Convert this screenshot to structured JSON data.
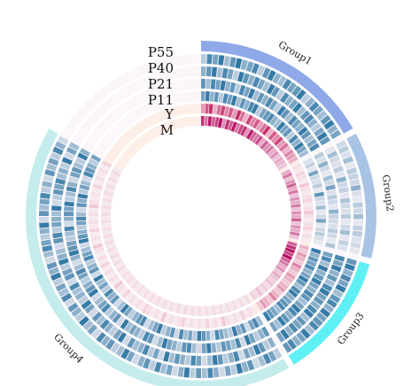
{
  "chart_data": {
    "type": "heatmap",
    "layout": "circular",
    "title": "",
    "tracks": [
      "P55",
      "P40",
      "P21",
      "P11",
      "Y",
      "M"
    ],
    "groups": [
      {
        "name": "Group1",
        "color": "#8fa8e8",
        "start_deg": 0,
        "end_deg": 60,
        "segments": 28
      },
      {
        "name": "Group2",
        "color": "#a9c3e6",
        "start_deg": 62,
        "end_deg": 104,
        "segments": 20
      },
      {
        "name": "Group3",
        "color": "#5ff0f6",
        "start_deg": 106,
        "end_deg": 148,
        "segments": 20
      },
      {
        "name": "Group4",
        "color": "#c4ecec",
        "start_deg": 150,
        "end_deg": 300,
        "segments": 70
      }
    ],
    "track_colors": {
      "P55": "#1f6d9e",
      "P40": "#1f6d9e",
      "P21": "#1f6d9e",
      "P11": "#1f6d9e",
      "Y": "#c2185b",
      "M": "#b0005a"
    },
    "value_scale": [
      0,
      1
    ],
    "values": {
      "Group1": {
        "P55": [
          0.3,
          0.8,
          0.6,
          0.9,
          0.4,
          0.7,
          0.95,
          0.5,
          0.6,
          0.8,
          0.3,
          0.7,
          0.9,
          0.5,
          0.4,
          0.8,
          0.6,
          0.7,
          0.9,
          0.3,
          0.5,
          0.8,
          0.6,
          0.4,
          0.7,
          0.9,
          0.5,
          0.6
        ],
        "P40": [
          0.5,
          0.7,
          0.9,
          0.4,
          0.8,
          0.6,
          0.3,
          0.9,
          0.7,
          0.5,
          0.8,
          0.6,
          0.4,
          0.9,
          0.7,
          0.3,
          0.8,
          0.5,
          0.6,
          0.9,
          0.4,
          0.7,
          0.8,
          0.5,
          0.3,
          0.6,
          0.9,
          0.7
        ],
        "P21": [
          0.7,
          0.4,
          0.8,
          0.6,
          0.9,
          0.5,
          0.7,
          0.3,
          0.8,
          0.6,
          0.9,
          0.4,
          0.7,
          0.5,
          0.8,
          0.6,
          0.3,
          0.9,
          0.7,
          0.4,
          0.8,
          0.6,
          0.5,
          0.9,
          0.7,
          0.4,
          0.6,
          0.8
        ],
        "P11": [
          0.6,
          0.9,
          0.5,
          0.7,
          0.3,
          0.8,
          0.6,
          0.9,
          0.4,
          0.7,
          0.5,
          0.8,
          0.9,
          0.3,
          0.6,
          0.7,
          0.8,
          0.5,
          0.4,
          0.9,
          0.6,
          0.7,
          0.3,
          0.8,
          0.5,
          0.9,
          0.6,
          0.4
        ],
        "Y": [
          0.4,
          0.7,
          0.9,
          0.3,
          0.6,
          0.8,
          0.5,
          0.7,
          0.4,
          0.9,
          0.6,
          0.3,
          0.8,
          0.5,
          0.7,
          0.4,
          0.6,
          0.9,
          0.3,
          0.7,
          0.5,
          0.8,
          0.4,
          0.6,
          0.3,
          0.5,
          0.4,
          0.3
        ],
        "M": [
          0.8,
          0.5,
          0.9,
          0.6,
          0.7,
          0.95,
          0.4,
          0.8,
          0.6,
          0.9,
          0.5,
          0.7,
          0.8,
          0.4,
          0.9,
          0.6,
          0.5,
          0.7,
          0.3,
          0.6,
          0.4,
          0.5,
          0.3,
          0.4,
          0.2,
          0.3,
          0.25,
          0.2
        ]
      },
      "Group2": {
        "P55": [
          0.2,
          0.3,
          0.15,
          0.4,
          0.1,
          0.3,
          0.25,
          0.2,
          0.5,
          0.15,
          0.1,
          0.3,
          0.2,
          0.4,
          0.1,
          0.25,
          0.3,
          0.15,
          0.2,
          0.1
        ],
        "P40": [
          0.1,
          0.4,
          0.2,
          0.15,
          0.3,
          0.1,
          0.5,
          0.2,
          0.25,
          0.1,
          0.35,
          0.2,
          0.15,
          0.3,
          0.1,
          0.2,
          0.4,
          0.1,
          0.25,
          0.15
        ],
        "P21": [
          0.3,
          0.15,
          0.5,
          0.2,
          0.1,
          0.4,
          0.2,
          0.6,
          0.15,
          0.3,
          0.2,
          0.1,
          0.5,
          0.25,
          0.2,
          0.15,
          0.3,
          0.2,
          0.1,
          0.35
        ],
        "P11": [
          0.15,
          0.25,
          0.1,
          0.6,
          0.2,
          0.15,
          0.3,
          0.1,
          0.7,
          0.2,
          0.15,
          0.4,
          0.1,
          0.2,
          0.6,
          0.1,
          0.2,
          0.3,
          0.15,
          0.1
        ],
        "Y": [
          0.1,
          0.05,
          0.15,
          0.1,
          0.05,
          0.2,
          0.1,
          0.05,
          0.1,
          0.15,
          0.05,
          0.1,
          0.2,
          0.1,
          0.05,
          0.1,
          0.15,
          0.05,
          0.1,
          0.05
        ],
        "M": [
          0.3,
          0.5,
          0.2,
          0.4,
          0.6,
          0.3,
          0.5,
          0.2,
          0.4,
          0.3,
          0.5,
          0.2,
          0.4,
          0.3,
          0.6,
          0.2,
          0.4,
          0.3,
          0.5,
          0.2
        ]
      },
      "Group3": {
        "P55": [
          0.7,
          0.9,
          0.5,
          0.8,
          0.6,
          0.9,
          0.4,
          0.7,
          0.8,
          0.5,
          0.9,
          0.6,
          0.7,
          0.8,
          0.4,
          0.9,
          0.6,
          0.5,
          0.8,
          0.7
        ],
        "P40": [
          0.8,
          0.6,
          0.9,
          0.5,
          0.7,
          0.4,
          0.8,
          0.9,
          0.6,
          0.7,
          0.5,
          0.8,
          0.9,
          0.4,
          0.7,
          0.6,
          0.8,
          0.5,
          0.9,
          0.6
        ],
        "P21": [
          0.6,
          0.8,
          0.4,
          0.9,
          0.5,
          0.7,
          0.9,
          0.6,
          0.5,
          0.8,
          0.7,
          0.4,
          0.6,
          0.9,
          0.8,
          0.5,
          0.7,
          0.9,
          0.4,
          0.6
        ],
        "P11": [
          0.9,
          0.5,
          0.7,
          0.6,
          0.8,
          0.5,
          0.6,
          0.9,
          0.7,
          0.4,
          0.8,
          0.9,
          0.5,
          0.6,
          0.7,
          0.8,
          0.4,
          0.6,
          0.7,
          0.9
        ],
        "Y": [
          0.3,
          0.2,
          0.4,
          0.3,
          0.2,
          0.5,
          0.3,
          0.2,
          0.4,
          0.3,
          0.2,
          0.3,
          0.4,
          0.2,
          0.3,
          0.5,
          0.2,
          0.3,
          0.4,
          0.2
        ],
        "M": [
          0.6,
          0.8,
          0.9,
          0.7,
          0.95,
          0.6,
          0.5,
          0.3,
          0.4,
          0.2,
          0.3,
          0.2,
          0.15,
          0.2,
          0.1,
          0.15,
          0.1,
          0.2,
          0.1,
          0.15
        ]
      },
      "Group4": {
        "P55": [
          0.3,
          0.6,
          0.8,
          0.4,
          0.2,
          0.7,
          0.5,
          0.9,
          0.3,
          0.6,
          0.2,
          0.5,
          0.8,
          0.4,
          0.7,
          0.3,
          0.9,
          0.5,
          0.2,
          0.6,
          0.4,
          0.8,
          0.3,
          0.7,
          0.5,
          0.2,
          0.6,
          0.9,
          0.4,
          0.3,
          0.7,
          0.5,
          0.8,
          0.2,
          0.6,
          0.4,
          0.9,
          0.3,
          0.5,
          0.7,
          0.2,
          0.8,
          0.4,
          0.6,
          0.3,
          0.9,
          0.5,
          0.7,
          0.2,
          0.4,
          0.8,
          0.6,
          0.3,
          0.5,
          0.9,
          0.2,
          0.7,
          0.4,
          0.6,
          0.8,
          0.3,
          0.5,
          0.2,
          0.7,
          0.4,
          0.6,
          0.3,
          0.8,
          0.5,
          0.2
        ],
        "P40": [
          0.5,
          0.3,
          0.7,
          0.9,
          0.4,
          0.6,
          0.2,
          0.8,
          0.5,
          0.3,
          0.7,
          0.9,
          0.4,
          0.2,
          0.6,
          0.8,
          0.3,
          0.5,
          0.7,
          0.4,
          0.9,
          0.2,
          0.6,
          0.3,
          0.8,
          0.5,
          0.4,
          0.7,
          0.2,
          0.9,
          0.6,
          0.3,
          0.5,
          0.8,
          0.4,
          0.7,
          0.2,
          0.6,
          0.9,
          0.3,
          0.5,
          0.4,
          0.8,
          0.2,
          0.7,
          0.6,
          0.3,
          0.9,
          0.5,
          0.4,
          0.2,
          0.7,
          0.8,
          0.3,
          0.6,
          0.5,
          0.4,
          0.9,
          0.2,
          0.3,
          0.7,
          0.6,
          0.8,
          0.4,
          0.5,
          0.3,
          0.9,
          0.2,
          0.6,
          0.4
        ],
        "P21": [
          0.7,
          0.5,
          0.3,
          0.6,
          0.9,
          0.2,
          0.8,
          0.4,
          0.6,
          0.7,
          0.3,
          0.5,
          0.9,
          0.6,
          0.2,
          0.4,
          0.8,
          0.7,
          0.3,
          0.5,
          0.6,
          0.9,
          0.4,
          0.2,
          0.7,
          0.8,
          0.3,
          0.5,
          0.6,
          0.4,
          0.9,
          0.2,
          0.7,
          0.5,
          0.3,
          0.8,
          0.6,
          0.4,
          0.2,
          0.9,
          0.7,
          0.5,
          0.3,
          0.6,
          0.8,
          0.4,
          0.2,
          0.5,
          0.9,
          0.7,
          0.6,
          0.3,
          0.4,
          0.8,
          0.2,
          0.5,
          0.7,
          0.6,
          0.9,
          0.3,
          0.4,
          0.8,
          0.5,
          0.2,
          0.6,
          0.7,
          0.4,
          0.3,
          0.9,
          0.5
        ],
        "P11": [
          0.4,
          0.8,
          0.6,
          0.2,
          0.7,
          0.5,
          0.9,
          0.3,
          0.4,
          0.6,
          0.8,
          0.2,
          0.5,
          0.7,
          0.9,
          0.3,
          0.6,
          0.4,
          0.8,
          0.2,
          0.7,
          0.5,
          0.3,
          0.9,
          0.6,
          0.4,
          0.2,
          0.8,
          0.7,
          0.5,
          0.3,
          0.6,
          0.9,
          0.4,
          0.2,
          0.7,
          0.5,
          0.8,
          0.3,
          0.6,
          0.4,
          0.9,
          0.2,
          0.7,
          0.5,
          0.3,
          0.8,
          0.6,
          0.4,
          0.2,
          0.9,
          0.7,
          0.5,
          0.3,
          0.6,
          0.8,
          0.4,
          0.2,
          0.7,
          0.5,
          0.9,
          0.3,
          0.6,
          0.4,
          0.2,
          0.8,
          0.7,
          0.5,
          0.3,
          0.6
        ],
        "Y": [
          0.05,
          0.1,
          0.05,
          0.15,
          0.05,
          0.1,
          0.05,
          0.1,
          0.2,
          0.05,
          0.1,
          0.05,
          0.15,
          0.05,
          0.1,
          0.05,
          0.1,
          0.05,
          0.15,
          0.1,
          0.05,
          0.1,
          0.05,
          0.2,
          0.05,
          0.1,
          0.05,
          0.1,
          0.15,
          0.05,
          0.1,
          0.05,
          0.1,
          0.05,
          0.15,
          0.05,
          0.1,
          0.2,
          0.05,
          0.1,
          0.05,
          0.1,
          0.05,
          0.15,
          0.05,
          0.1,
          0.05,
          0.1,
          0.2,
          0.05,
          0.1,
          0.05,
          0.15,
          0.05,
          0.1,
          0.05,
          0.1,
          0.05,
          0.2,
          0.1,
          0.05,
          0.1,
          0.05,
          0.15,
          0.05,
          0.1,
          0.05,
          0.1,
          0.05,
          0.15
        ],
        "M": [
          0.1,
          0.05,
          0.1,
          0.05,
          0.1,
          0.05,
          0.1,
          0.05,
          0.1,
          0.05,
          0.1,
          0.05,
          0.1,
          0.05,
          0.1,
          0.05,
          0.1,
          0.05,
          0.1,
          0.05,
          0.1,
          0.05,
          0.1,
          0.05,
          0.1,
          0.05,
          0.1,
          0.05,
          0.1,
          0.05,
          0.1,
          0.05,
          0.1,
          0.05,
          0.1,
          0.05,
          0.1,
          0.05,
          0.1,
          0.05,
          0.1,
          0.05,
          0.1,
          0.05,
          0.1,
          0.05,
          0.1,
          0.05,
          0.1,
          0.05,
          0.1,
          0.05,
          0.1,
          0.05,
          0.1,
          0.05,
          0.1,
          0.05,
          0.1,
          0.05,
          0.1,
          0.05,
          0.1,
          0.05,
          0.1,
          0.05,
          0.1,
          0.05,
          0.1,
          0.05
        ]
      }
    },
    "legend": "none",
    "grid": false
  }
}
